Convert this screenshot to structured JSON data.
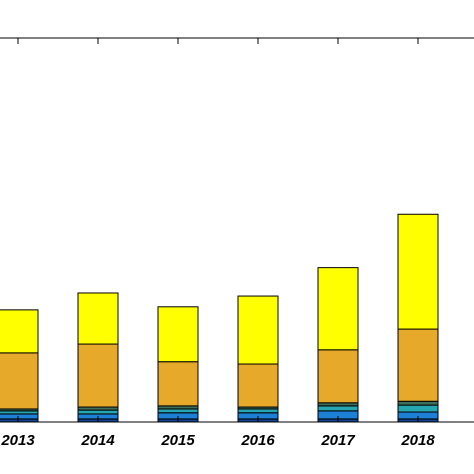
{
  "chart_data": {
    "type": "stacked-bar",
    "categories": [
      "2013",
      "2014",
      "2015",
      "2016",
      "2017",
      "2018"
    ],
    "ylim": [
      0,
      100
    ],
    "series": [
      {
        "color": "#123f8c",
        "values": [
          0.8,
          0.8,
          0.8,
          0.8,
          0.8,
          0.8
        ]
      },
      {
        "color": "#1e7fd6",
        "values": [
          1.3,
          1.3,
          1.6,
          1.6,
          2.1,
          1.8
        ]
      },
      {
        "color": "#26a6b0",
        "values": [
          0.8,
          1.0,
          1.0,
          1.0,
          1.3,
          1.8
        ]
      },
      {
        "color": "#3f6f5a",
        "values": [
          0.5,
          0.8,
          0.8,
          0.5,
          0.8,
          1.0
        ]
      },
      {
        "color": "#e6a92a",
        "values": [
          14.6,
          16.4,
          11.5,
          11.2,
          13.8,
          18.8
        ]
      },
      {
        "color": "#ffff00",
        "values": [
          11.2,
          13.3,
          14.3,
          17.7,
          21.4,
          29.9
        ]
      }
    ]
  }
}
